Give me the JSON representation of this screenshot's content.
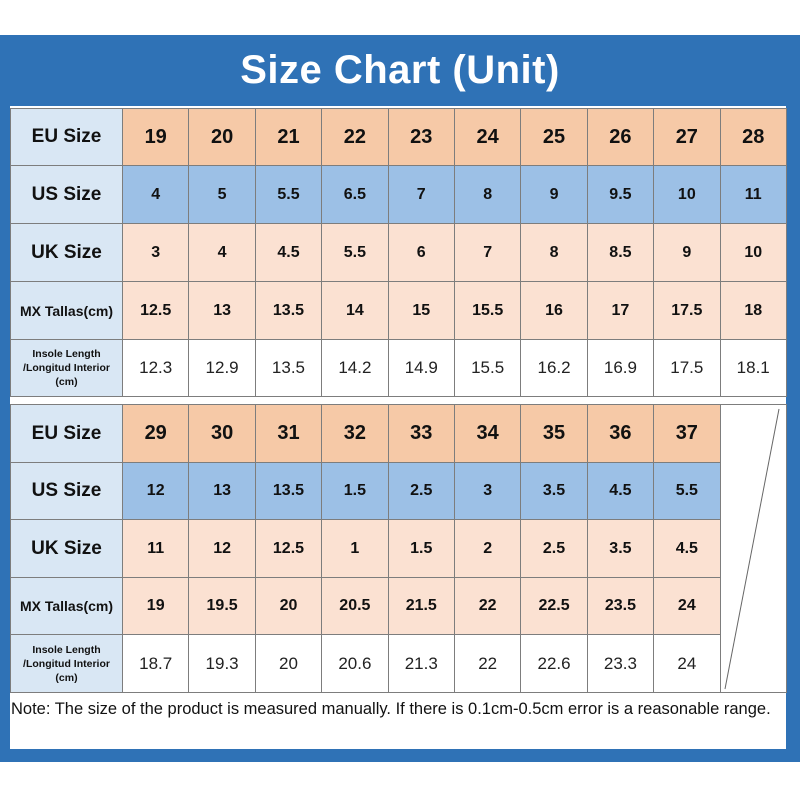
{
  "title": "Size Chart (Unit)",
  "labels": {
    "eu": "EU Size",
    "us": "US Size",
    "uk": "UK Size",
    "mx": "MX Tallas(cm)",
    "insole": [
      "Insole Length",
      "/Longitud Interior",
      "(cm)"
    ]
  },
  "table1": {
    "eu": [
      "19",
      "20",
      "21",
      "22",
      "23",
      "24",
      "25",
      "26",
      "27",
      "28"
    ],
    "us": [
      "4",
      "5",
      "5.5",
      "6.5",
      "7",
      "8",
      "9",
      "9.5",
      "10",
      "11"
    ],
    "uk": [
      "3",
      "4",
      "4.5",
      "5.5",
      "6",
      "7",
      "8",
      "8.5",
      "9",
      "10"
    ],
    "mx": [
      "12.5",
      "13",
      "13.5",
      "14",
      "15",
      "15.5",
      "16",
      "17",
      "17.5",
      "18"
    ],
    "insole": [
      "12.3",
      "12.9",
      "13.5",
      "14.2",
      "14.9",
      "15.5",
      "16.2",
      "16.9",
      "17.5",
      "18.1"
    ]
  },
  "table2": {
    "eu": [
      "29",
      "30",
      "31",
      "32",
      "33",
      "34",
      "35",
      "36",
      "37"
    ],
    "us": [
      "12",
      "13",
      "13.5",
      "1.5",
      "2.5",
      "3",
      "3.5",
      "4.5",
      "5.5"
    ],
    "uk": [
      "11",
      "12",
      "12.5",
      "1",
      "1.5",
      "2",
      "2.5",
      "3.5",
      "4.5"
    ],
    "mx": [
      "19",
      "19.5",
      "20",
      "20.5",
      "21.5",
      "22",
      "22.5",
      "23.5",
      "24"
    ],
    "insole": [
      "18.7",
      "19.3",
      "20",
      "20.6",
      "21.3",
      "22",
      "22.6",
      "23.3",
      "24"
    ]
  },
  "note": "Note: The size of the product is measured manually. If there is 0.1cm-0.5cm error is a reasonable range.",
  "colors": {
    "frame": "#2f72b6",
    "label_bg": "#d9e7f4",
    "eu_bg": "#f6c9a7",
    "us_bg": "#9cc0e6",
    "uk_mx_bg": "#fbe1d2"
  }
}
